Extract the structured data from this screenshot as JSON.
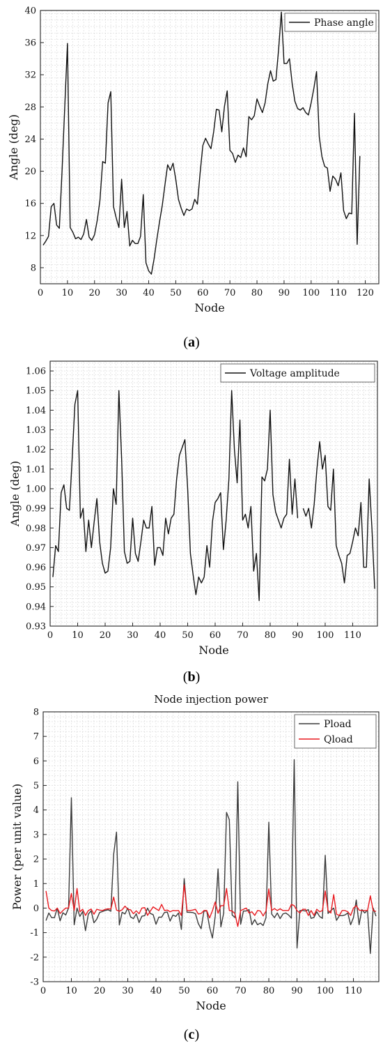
{
  "chart_data": [
    {
      "id": "a",
      "type": "line",
      "caption": "a",
      "title": "",
      "xlabel": "Node",
      "ylabel": "Angle (deg)",
      "xlim": [
        0,
        125
      ],
      "ylim": [
        6,
        40
      ],
      "xticks": [
        0,
        10,
        20,
        30,
        40,
        50,
        60,
        70,
        80,
        90,
        100,
        110,
        120
      ],
      "yticks": [
        8,
        12,
        16,
        20,
        24,
        28,
        32,
        36,
        40
      ],
      "grid": true,
      "legend": "top-right",
      "series": [
        {
          "name": "Phase angle",
          "color": "#111111",
          "x": [
            1,
            2,
            3,
            4,
            5,
            6,
            7,
            8,
            9,
            10,
            11,
            12,
            13,
            14,
            15,
            16,
            17,
            18,
            19,
            20,
            21,
            22,
            23,
            24,
            25,
            26,
            27,
            28,
            29,
            30,
            31,
            32,
            33,
            34,
            35,
            36,
            37,
            38,
            39,
            40,
            41,
            42,
            43,
            44,
            45,
            46,
            47,
            48,
            49,
            50,
            51,
            52,
            53,
            54,
            55,
            56,
            57,
            58,
            59,
            60,
            61,
            62,
            63,
            64,
            65,
            66,
            67,
            68,
            69,
            70,
            71,
            72,
            73,
            74,
            75,
            76,
            77,
            78,
            79,
            80,
            81,
            82,
            83,
            84,
            85,
            86,
            87,
            88,
            89,
            90,
            91,
            92,
            93,
            94,
            95,
            96,
            97,
            98,
            99,
            100,
            101,
            102,
            103,
            104,
            105,
            106,
            107,
            108,
            109,
            110,
            111,
            112,
            113,
            114,
            115,
            116,
            117,
            118
          ],
          "values": [
            10.8,
            11.3,
            11.9,
            15.6,
            16.0,
            13.3,
            12.9,
            20.0,
            28.0,
            35.9,
            13.0,
            12.4,
            11.6,
            11.8,
            11.5,
            12.2,
            14.0,
            11.8,
            11.4,
            12.1,
            13.9,
            16.4,
            21.2,
            21.0,
            28.5,
            29.9,
            15.6,
            14.2,
            13.0,
            19.0,
            13.0,
            15.0,
            10.7,
            11.4,
            11.0,
            11.0,
            11.9,
            17.1,
            8.6,
            7.6,
            7.2,
            9.1,
            11.5,
            13.7,
            15.7,
            18.3,
            20.8,
            20.1,
            21.0,
            19.0,
            16.5,
            15.4,
            14.5,
            15.3,
            15.1,
            15.3,
            16.5,
            15.9,
            19.8,
            23.2,
            24.1,
            23.4,
            22.8,
            24.9,
            27.7,
            27.6,
            24.9,
            28.1,
            30.0,
            22.6,
            22.2,
            21.1,
            22.0,
            21.7,
            22.9,
            21.8,
            26.8,
            26.4,
            26.9,
            29.0,
            28.1,
            27.3,
            28.5,
            30.9,
            32.5,
            31.2,
            31.4,
            35.2,
            39.8,
            33.4,
            33.4,
            34.0,
            30.9,
            28.7,
            27.8,
            27.6,
            27.9,
            27.3,
            27.0,
            28.5,
            30.3,
            32.4,
            24.3,
            21.8,
            20.6,
            20.4,
            17.5,
            19.4,
            19.0,
            18.2,
            19.8,
            15.1,
            14.1,
            14.8,
            14.7,
            27.2,
            10.9,
            21.9
          ]
        }
      ]
    },
    {
      "id": "b",
      "type": "line",
      "caption": "b",
      "title": "",
      "xlabel": "Node",
      "ylabel": "Angle (deg)",
      "xlim": [
        0,
        119
      ],
      "ylim": [
        0.93,
        1.065
      ],
      "xticks": [
        0,
        10,
        20,
        30,
        40,
        50,
        60,
        70,
        80,
        90,
        100,
        110
      ],
      "yticks": [
        0.93,
        0.94,
        0.95,
        0.96,
        0.97,
        0.98,
        0.99,
        1.0,
        1.01,
        1.02,
        1.03,
        1.04,
        1.05,
        1.06
      ],
      "ytick_labels": [
        "0.93",
        "0.94",
        "0.95",
        "0.96",
        "0.97",
        "0.98",
        "0.99",
        "1.00",
        "1.01",
        "1.02",
        "1.03",
        "1.04",
        "1.05",
        "1.06"
      ],
      "grid": true,
      "legend": "top-right",
      "series": [
        {
          "name": "Voltage amplitude",
          "color": "#111111",
          "x": [
            1,
            2,
            3,
            4,
            5,
            6,
            7,
            8,
            9,
            10,
            11,
            12,
            13,
            14,
            15,
            16,
            17,
            18,
            19,
            20,
            21,
            22,
            23,
            24,
            25,
            26,
            27,
            28,
            29,
            30,
            31,
            32,
            33,
            34,
            35,
            36,
            37,
            38,
            39,
            40,
            41,
            42,
            43,
            44,
            45,
            46,
            47,
            48,
            49,
            50,
            51,
            52,
            53,
            54,
            55,
            56,
            57,
            58,
            59,
            60,
            61,
            62,
            63,
            64,
            65,
            66,
            67,
            68,
            69,
            70,
            71,
            72,
            73,
            74,
            75,
            76,
            77,
            78,
            79,
            80,
            81,
            82,
            83,
            84,
            85,
            86,
            87,
            88,
            89,
            90,
            91,
            92,
            93,
            94,
            95,
            96,
            97,
            98,
            99,
            100,
            101,
            102,
            103,
            104,
            105,
            106,
            107,
            108,
            109,
            110,
            111,
            112,
            113,
            114,
            115,
            116,
            117,
            118
          ],
          "values": [
            0.955,
            0.971,
            0.968,
            0.998,
            1.002,
            0.99,
            0.989,
            1.015,
            1.043,
            1.05,
            0.985,
            0.99,
            0.968,
            0.984,
            0.97,
            0.983,
            0.995,
            0.973,
            0.962,
            0.957,
            0.958,
            0.97,
            1.0,
            0.992,
            1.05,
            1.015,
            0.968,
            0.962,
            0.963,
            0.985,
            0.967,
            0.963,
            0.973,
            0.984,
            0.98,
            0.98,
            0.991,
            0.961,
            0.97,
            0.97,
            0.966,
            0.985,
            0.977,
            0.985,
            0.987,
            1.005,
            1.017,
            1.021,
            1.025,
            1.0,
            0.967,
            0.956,
            0.946,
            0.955,
            0.952,
            0.955,
            0.971,
            0.96,
            0.983,
            0.993,
            0.995,
            0.998,
            0.969,
            0.984,
            1.005,
            1.05,
            1.02,
            1.003,
            1.035,
            0.984,
            0.987,
            0.98,
            0.991,
            0.958,
            0.967,
            0.943,
            1.006,
            1.004,
            1.01,
            1.04,
            0.997,
            0.988,
            0.984,
            0.98,
            0.985,
            0.987,
            1.015,
            0.987,
            1.005,
            0.985,
            null,
            0.99,
            0.986,
            0.99,
            0.98,
            0.992,
            1.01,
            1.024,
            1.01,
            1.017,
            0.991,
            0.989,
            1.01,
            0.971,
            0.966,
            0.962,
            0.952,
            0.966,
            0.967,
            0.973,
            0.98,
            0.976,
            0.993,
            0.96,
            0.96,
            1.005,
            0.98,
            0.949
          ]
        }
      ]
    },
    {
      "id": "c",
      "type": "line",
      "caption": "c",
      "title": "Node injection power",
      "xlabel": "Node",
      "ylabel": "Power (per unit value)",
      "xlim": [
        0,
        119
      ],
      "ylim": [
        -3,
        8
      ],
      "xticks": [
        0,
        10,
        20,
        30,
        40,
        50,
        60,
        70,
        80,
        90,
        100,
        110
      ],
      "yticks": [
        -3,
        -2,
        -1,
        0,
        1,
        2,
        3,
        4,
        5,
        6,
        7,
        8
      ],
      "grid": true,
      "legend": "top-right",
      "series": [
        {
          "name": "Pload",
          "color": "#3a3a3a",
          "x": [
            1,
            2,
            3,
            4,
            5,
            6,
            7,
            8,
            9,
            10,
            11,
            12,
            13,
            14,
            15,
            16,
            17,
            18,
            19,
            20,
            21,
            22,
            23,
            24,
            25,
            26,
            27,
            28,
            29,
            30,
            31,
            32,
            33,
            34,
            35,
            36,
            37,
            38,
            39,
            40,
            41,
            42,
            43,
            44,
            45,
            46,
            47,
            48,
            49,
            50,
            51,
            52,
            53,
            54,
            55,
            56,
            57,
            58,
            59,
            60,
            61,
            62,
            63,
            64,
            65,
            66,
            67,
            68,
            69,
            70,
            71,
            72,
            73,
            74,
            75,
            76,
            77,
            78,
            79,
            80,
            81,
            82,
            83,
            84,
            85,
            86,
            87,
            88,
            89,
            90,
            91,
            92,
            93,
            94,
            95,
            96,
            97,
            98,
            99,
            100,
            101,
            102,
            103,
            104,
            105,
            106,
            107,
            108,
            109,
            110,
            111,
            112,
            113,
            114,
            115,
            116,
            117,
            118
          ],
          "values": [
            -0.51,
            -0.2,
            -0.39,
            -0.39,
            0.0,
            -0.52,
            -0.19,
            -0.28,
            0.0,
            4.5,
            -0.68,
            0.0,
            -0.34,
            -0.14,
            -0.92,
            -0.25,
            -0.11,
            -0.6,
            -0.45,
            -0.18,
            -0.14,
            -0.1,
            -0.07,
            -0.13,
            2.2,
            3.1,
            -0.69,
            -0.17,
            -0.24,
            0.0,
            -0.36,
            -0.43,
            -0.23,
            -0.59,
            -0.33,
            -0.31,
            0.0,
            -0.22,
            -0.27,
            -0.66,
            -0.37,
            -0.37,
            -0.18,
            -0.16,
            -0.53,
            -0.28,
            -0.34,
            -0.2,
            -0.87,
            1.2,
            -0.17,
            -0.17,
            -0.18,
            -0.23,
            -0.63,
            -0.84,
            -0.12,
            -0.12,
            -0.77,
            -1.22,
            -0.33,
            1.6,
            -0.77,
            -0.2,
            3.9,
            3.6,
            -0.28,
            -0.39,
            5.15,
            -0.66,
            -0.12,
            -0.12,
            -0.06,
            -0.68,
            -0.47,
            -0.68,
            -0.61,
            -0.71,
            -0.39,
            3.5,
            -0.24,
            -0.39,
            -0.2,
            -0.43,
            -0.24,
            -0.2,
            -0.28,
            -0.41,
            6.05,
            -1.63,
            -0.1,
            -0.1,
            -0.12,
            -0.06,
            -0.42,
            -0.38,
            -0.15,
            -0.34,
            -0.42,
            2.15,
            -0.22,
            -0.1,
            0.0,
            -0.5,
            -0.31,
            -0.31,
            -0.28,
            -0.2,
            -0.68,
            -0.39,
            0.33,
            -0.68,
            -0.06,
            -0.2,
            -0.08,
            -1.85,
            0.0,
            -0.33
          ]
        },
        {
          "name": "Qload",
          "color": "#e8191f",
          "x": [
            1,
            2,
            3,
            4,
            5,
            6,
            7,
            8,
            9,
            10,
            11,
            12,
            13,
            14,
            15,
            16,
            17,
            18,
            19,
            20,
            21,
            22,
            23,
            24,
            25,
            26,
            27,
            28,
            29,
            30,
            31,
            32,
            33,
            34,
            35,
            36,
            37,
            38,
            39,
            40,
            41,
            42,
            43,
            44,
            45,
            46,
            47,
            48,
            49,
            50,
            51,
            52,
            53,
            54,
            55,
            56,
            57,
            58,
            59,
            60,
            61,
            62,
            63,
            64,
            65,
            66,
            67,
            68,
            69,
            70,
            71,
            72,
            73,
            74,
            75,
            76,
            77,
            78,
            79,
            80,
            81,
            82,
            83,
            84,
            85,
            86,
            87,
            88,
            89,
            90,
            91,
            92,
            93,
            94,
            95,
            96,
            97,
            98,
            99,
            100,
            101,
            102,
            103,
            104,
            105,
            106,
            107,
            108,
            109,
            110,
            111,
            112,
            113,
            114,
            115,
            116,
            117,
            118
          ],
          "values": [
            0.7,
            0.0,
            -0.1,
            -0.12,
            0.0,
            -0.22,
            -0.1,
            0.0,
            0.0,
            0.6,
            -0.1,
            0.8,
            -0.15,
            -0.05,
            -0.3,
            -0.1,
            -0.04,
            -0.25,
            -0.05,
            -0.08,
            -0.1,
            -0.05,
            -0.03,
            -0.04,
            0.45,
            -0.08,
            -0.13,
            -0.07,
            0.08,
            -0.05,
            -0.07,
            -0.23,
            -0.11,
            -0.23,
            0.0,
            0.02,
            -0.3,
            -0.12,
            0.05,
            -0.03,
            -0.1,
            0.15,
            -0.1,
            -0.08,
            -0.15,
            -0.1,
            -0.11,
            -0.1,
            -0.3,
            0.95,
            -0.1,
            -0.1,
            -0.08,
            -0.05,
            -0.24,
            -0.22,
            -0.1,
            -0.1,
            -0.4,
            -0.11,
            0.25,
            -0.21,
            0.1,
            0.1,
            0.8,
            -0.1,
            -0.12,
            -0.23,
            -0.75,
            -0.1,
            -0.05,
            0.0,
            -0.2,
            -0.15,
            -0.3,
            -0.1,
            -0.12,
            -0.32,
            -0.12,
            0.78,
            -0.1,
            -0.02,
            -0.1,
            -0.03,
            -0.1,
            -0.1,
            -0.1,
            0.15,
            0.1,
            -0.1,
            -0.2,
            -0.05,
            -0.05,
            -0.3,
            -0.1,
            -0.3,
            -0.05,
            -0.15,
            -0.1,
            0.7,
            -0.1,
            -0.2,
            0.55,
            -0.25,
            -0.3,
            -0.1,
            -0.1,
            -0.15,
            -0.3,
            0.0,
            0.1,
            -0.08,
            -0.1,
            -0.1,
            -0.1,
            0.5,
            -0.1,
            -0.14
          ]
        }
      ]
    }
  ]
}
